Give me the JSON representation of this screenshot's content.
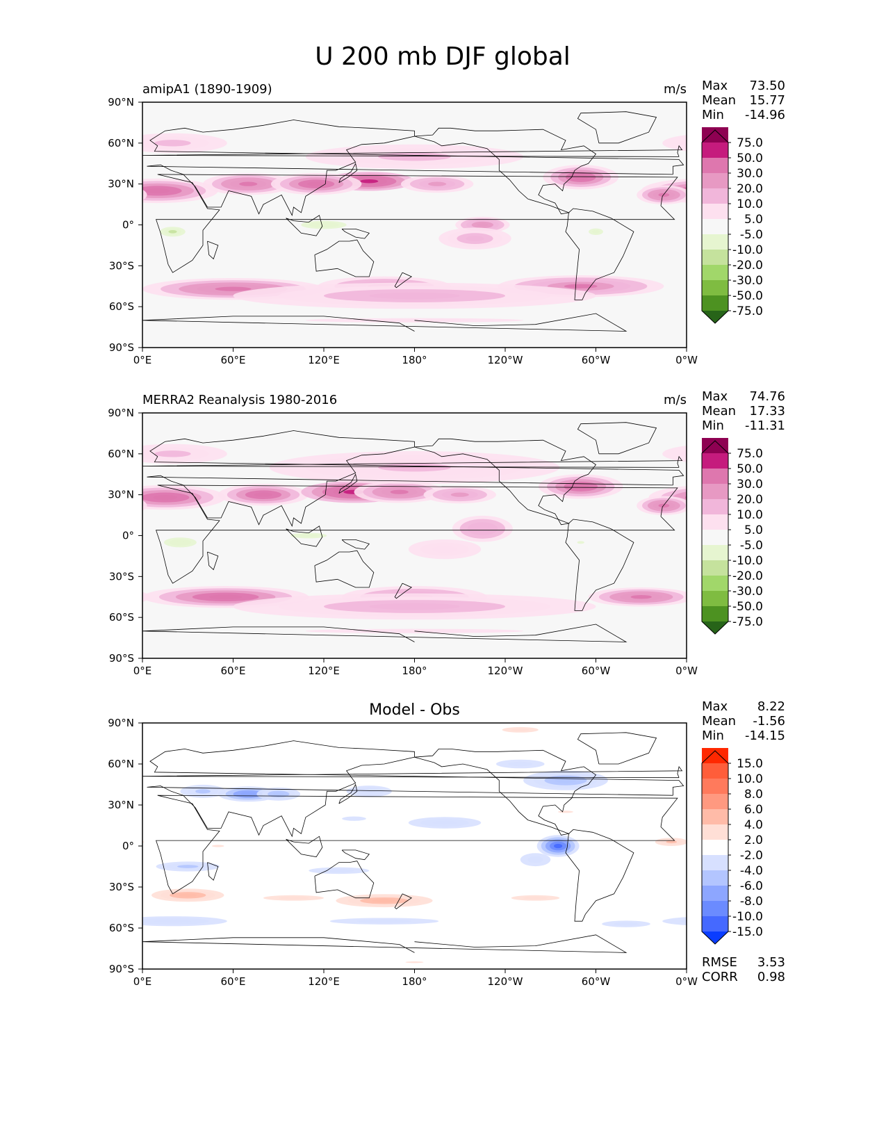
{
  "title": "U 200 mb DJF global",
  "chart_data": [
    {
      "type": "heatmap",
      "left_title": "amipA1 (1890-1909)",
      "units": "m/s",
      "stats": [
        {
          "label": "Max",
          "value": "73.50"
        },
        {
          "label": "Mean",
          "value": "15.77"
        },
        {
          "label": "Min",
          "value": "-14.96"
        }
      ],
      "colorbar": {
        "levels": [
          "75.0",
          "50.0",
          "30.0",
          "20.0",
          "10.0",
          "5.0",
          "-5.0",
          "-10.0",
          "-20.0",
          "-30.0",
          "-50.0",
          "-75.0"
        ],
        "colors": [
          "#8e0152",
          "#c51b7d",
          "#de77ae",
          "#e799c3",
          "#f1b6da",
          "#fde0ef",
          "#f7f7f7",
          "#e6f5d0",
          "#c5e29d",
          "#a1d76a",
          "#7fbc41",
          "#4d9221",
          "#276419"
        ]
      },
      "fields": [
        {
          "x": 10,
          "y": 25,
          "sx": 40,
          "sy": 9,
          "v": 45
        },
        {
          "x": 70,
          "y": 30,
          "sx": 30,
          "sy": 8,
          "v": 40
        },
        {
          "x": 150,
          "y": 32,
          "sx": 30,
          "sy": 7,
          "v": 60
        },
        {
          "x": 115,
          "y": 30,
          "sx": 30,
          "sy": 8,
          "v": 45
        },
        {
          "x": 195,
          "y": 30,
          "sx": 30,
          "sy": 8,
          "v": 25
        },
        {
          "x": 290,
          "y": 35,
          "sx": 25,
          "sy": 9,
          "v": 45
        },
        {
          "x": 345,
          "y": 22,
          "sx": 18,
          "sy": 7,
          "v": 40
        },
        {
          "x": 180,
          "y": 50,
          "sx": 120,
          "sy": 15,
          "v": 12
        },
        {
          "x": 20,
          "y": 60,
          "sx": 60,
          "sy": 12,
          "v": 12
        },
        {
          "x": 60,
          "y": -47,
          "sx": 60,
          "sy": 8,
          "v": 42
        },
        {
          "x": 160,
          "y": -45,
          "sx": 55,
          "sy": 9,
          "v": 25
        },
        {
          "x": 290,
          "y": -45,
          "sx": 55,
          "sy": 8,
          "v": 38
        },
        {
          "x": 180,
          "y": -52,
          "sx": 150,
          "sy": 12,
          "v": 18
        },
        {
          "x": 225,
          "y": 0,
          "sx": 18,
          "sy": 6,
          "v": 30
        },
        {
          "x": 220,
          "y": -10,
          "sx": 30,
          "sy": 10,
          "v": 15
        },
        {
          "x": 20,
          "y": -5,
          "sx": 14,
          "sy": 6,
          "v": -12
        },
        {
          "x": 120,
          "y": 0,
          "sx": 25,
          "sy": 5,
          "v": -10
        },
        {
          "x": 300,
          "y": -5,
          "sx": 12,
          "sy": 6,
          "v": -8
        },
        {
          "x": 180,
          "y": -70,
          "sx": 180,
          "sy": 4,
          "v": 8
        }
      ]
    },
    {
      "type": "heatmap",
      "left_title": "MERRA2 Reanalysis 1980-2016",
      "units": "m/s",
      "stats": [
        {
          "label": "Max",
          "value": "74.76"
        },
        {
          "label": "Mean",
          "value": "17.33"
        },
        {
          "label": "Min",
          "value": "-11.31"
        }
      ],
      "colorbar": {
        "levels": [
          "75.0",
          "50.0",
          "30.0",
          "20.0",
          "10.0",
          "5.0",
          "-5.0",
          "-10.0",
          "-20.0",
          "-30.0",
          "-50.0",
          "-75.0"
        ],
        "colors": [
          "#8e0152",
          "#c51b7d",
          "#de77ae",
          "#e799c3",
          "#f1b6da",
          "#fde0ef",
          "#f7f7f7",
          "#e6f5d0",
          "#c5e29d",
          "#a1d76a",
          "#7fbc41",
          "#4d9221",
          "#276419"
        ]
      },
      "fields": [
        {
          "x": 15,
          "y": 28,
          "sx": 40,
          "sy": 9,
          "v": 50
        },
        {
          "x": 80,
          "y": 30,
          "sx": 30,
          "sy": 8,
          "v": 45
        },
        {
          "x": 140,
          "y": 32,
          "sx": 35,
          "sy": 8,
          "v": 65
        },
        {
          "x": 170,
          "y": 32,
          "sx": 30,
          "sy": 8,
          "v": 40
        },
        {
          "x": 210,
          "y": 30,
          "sx": 30,
          "sy": 8,
          "v": 25
        },
        {
          "x": 290,
          "y": 36,
          "sx": 28,
          "sy": 9,
          "v": 48
        },
        {
          "x": 345,
          "y": 22,
          "sx": 18,
          "sy": 7,
          "v": 40
        },
        {
          "x": 180,
          "y": 50,
          "sx": 120,
          "sy": 15,
          "v": 14
        },
        {
          "x": 20,
          "y": 60,
          "sx": 60,
          "sy": 12,
          "v": 12
        },
        {
          "x": 55,
          "y": -45,
          "sx": 55,
          "sy": 8,
          "v": 45
        },
        {
          "x": 180,
          "y": -45,
          "sx": 60,
          "sy": 10,
          "v": 25
        },
        {
          "x": 330,
          "y": -45,
          "sx": 35,
          "sy": 7,
          "v": 40
        },
        {
          "x": 180,
          "y": -52,
          "sx": 150,
          "sy": 12,
          "v": 18
        },
        {
          "x": 225,
          "y": 5,
          "sx": 25,
          "sy": 12,
          "v": 20
        },
        {
          "x": 200,
          "y": -10,
          "sx": 40,
          "sy": 12,
          "v": 10
        },
        {
          "x": 25,
          "y": -5,
          "sx": 18,
          "sy": 6,
          "v": -10
        },
        {
          "x": 110,
          "y": 0,
          "sx": 30,
          "sy": 5,
          "v": -8
        },
        {
          "x": 290,
          "y": -5,
          "sx": 12,
          "sy": 5,
          "v": -6
        },
        {
          "x": 180,
          "y": -70,
          "sx": 180,
          "sy": 4,
          "v": 8
        }
      ]
    },
    {
      "type": "heatmap",
      "center_title": "Model - Obs",
      "stats": [
        {
          "label": "Max",
          "value": "8.22"
        },
        {
          "label": "Mean",
          "value": "-1.56"
        },
        {
          "label": "Min",
          "value": "-14.15"
        }
      ],
      "extra_stats": [
        {
          "label": "RMSE",
          "value": "3.53"
        },
        {
          "label": "CORR",
          "value": "0.98"
        }
      ],
      "colorbar": {
        "levels": [
          "15.0",
          "10.0",
          "8.0",
          "6.0",
          "4.0",
          "2.0",
          "-2.0",
          "-4.0",
          "-6.0",
          "-8.0",
          "-10.0",
          "-15.0"
        ],
        "colors": [
          "#ff2800",
          "#ff5d3a",
          "#ff7a5c",
          "#ff9980",
          "#ffbba8",
          "#ffdfd6",
          "#ffffff",
          "#d7e0ff",
          "#b3c5ff",
          "#8da6ff",
          "#6b8bff",
          "#4569ff",
          "#0a3dff"
        ]
      },
      "fields": [
        {
          "x": 70,
          "y": 38,
          "sx": 25,
          "sy": 7,
          "v": -9
        },
        {
          "x": 90,
          "y": 38,
          "sx": 18,
          "sy": 6,
          "v": -6
        },
        {
          "x": 40,
          "y": 40,
          "sx": 25,
          "sy": 8,
          "v": -5
        },
        {
          "x": 150,
          "y": 40,
          "sx": 25,
          "sy": 7,
          "v": -4
        },
        {
          "x": 280,
          "y": 48,
          "sx": 35,
          "sy": 9,
          "v": -6
        },
        {
          "x": 250,
          "y": 60,
          "sx": 40,
          "sy": 8,
          "v": -3
        },
        {
          "x": 200,
          "y": 17,
          "sx": 40,
          "sy": 7,
          "v": -4
        },
        {
          "x": 140,
          "y": 20,
          "sx": 40,
          "sy": 8,
          "v": -2.5
        },
        {
          "x": 275,
          "y": 0,
          "sx": 14,
          "sy": 8,
          "v": -12
        },
        {
          "x": 260,
          "y": -10,
          "sx": 25,
          "sy": 12,
          "v": -3
        },
        {
          "x": 30,
          "y": -15,
          "sx": 35,
          "sy": 6,
          "v": -5
        },
        {
          "x": 130,
          "y": -18,
          "sx": 50,
          "sy": 6,
          "v": -3
        },
        {
          "x": 20,
          "y": -55,
          "sx": 60,
          "sy": 6,
          "v": -4
        },
        {
          "x": 160,
          "y": -55,
          "sx": 90,
          "sy": 6,
          "v": -3
        },
        {
          "x": 320,
          "y": -57,
          "sx": 40,
          "sy": 6,
          "v": -3
        },
        {
          "x": 30,
          "y": -36,
          "sx": 30,
          "sy": 6,
          "v": 6
        },
        {
          "x": 160,
          "y": -40,
          "sx": 40,
          "sy": 6,
          "v": 7
        },
        {
          "x": 100,
          "y": -38,
          "sx": 50,
          "sy": 5,
          "v": 3
        },
        {
          "x": 260,
          "y": -38,
          "sx": 40,
          "sy": 5,
          "v": 3
        },
        {
          "x": 350,
          "y": 3,
          "sx": 18,
          "sy": 5,
          "v": 5
        },
        {
          "x": 250,
          "y": 85,
          "sx": 30,
          "sy": 5,
          "v": 3
        },
        {
          "x": 280,
          "y": 25,
          "sx": 25,
          "sy": 4,
          "v": 2.5
        },
        {
          "x": 50,
          "y": 0,
          "sx": 20,
          "sy": 4,
          "v": 2.5
        },
        {
          "x": 180,
          "y": -85,
          "sx": 30,
          "sy": 3,
          "v": 2.5
        }
      ]
    }
  ],
  "x_ticks": [
    "0°E",
    "60°E",
    "120°E",
    "180°",
    "120°W",
    "60°W",
    "0°W"
  ],
  "y_ticks": [
    "90°N",
    "60°N",
    "30°N",
    "0°",
    "30°S",
    "60°S",
    "90°S"
  ]
}
